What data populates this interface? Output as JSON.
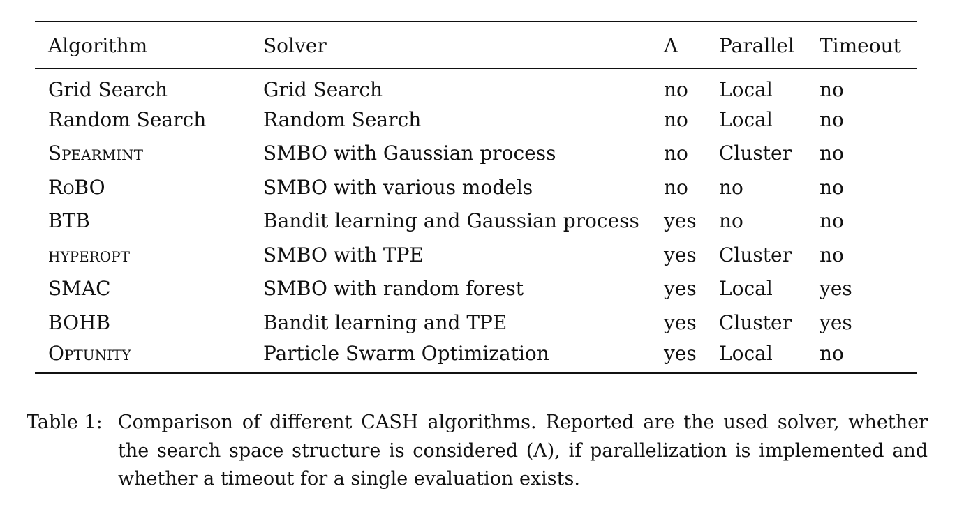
{
  "table": {
    "headers": [
      "Algorithm",
      "Solver",
      "Λ",
      "Parallel",
      "Timeout"
    ],
    "rows": [
      {
        "algorithm": "Grid Search",
        "small_caps": false,
        "solver": "Grid Search",
        "lambda": "no",
        "parallel": "Local",
        "timeout": "no"
      },
      {
        "algorithm": "Random Search",
        "small_caps": false,
        "solver": "Random Search",
        "lambda": "no",
        "parallel": "Local",
        "timeout": "no"
      },
      {
        "algorithm": "Spearmint",
        "small_caps": true,
        "solver": "SMBO with Gaussian process",
        "lambda": "no",
        "parallel": "Cluster",
        "timeout": "no"
      },
      {
        "algorithm": "RoBO",
        "small_caps": true,
        "solver": "SMBO with various models",
        "lambda": "no",
        "parallel": "no",
        "timeout": "no"
      },
      {
        "algorithm": "BTB",
        "small_caps": false,
        "solver": "Bandit learning and Gaussian process",
        "lambda": "yes",
        "parallel": "no",
        "timeout": "no"
      },
      {
        "algorithm": "hyperopt",
        "small_caps": true,
        "solver": "SMBO with TPE",
        "lambda": "yes",
        "parallel": "Cluster",
        "timeout": "no"
      },
      {
        "algorithm": "SMAC",
        "small_caps": false,
        "solver": "SMBO with random forest",
        "lambda": "yes",
        "parallel": "Local",
        "timeout": "yes"
      },
      {
        "algorithm": "BOHB",
        "small_caps": false,
        "solver": "Bandit learning and TPE",
        "lambda": "yes",
        "parallel": "Cluster",
        "timeout": "yes"
      },
      {
        "algorithm": "Optunity",
        "small_caps": true,
        "solver": "Particle Swarm Optimization",
        "lambda": "yes",
        "parallel": "Local",
        "timeout": "no"
      }
    ]
  },
  "caption": {
    "label": "Table 1:",
    "text": "Comparison of different CASH algorithms. Reported are the used solver, whether the search space structure is considered (Λ), if parallelization is implemented and whether a timeout for a single evaluation exists."
  }
}
